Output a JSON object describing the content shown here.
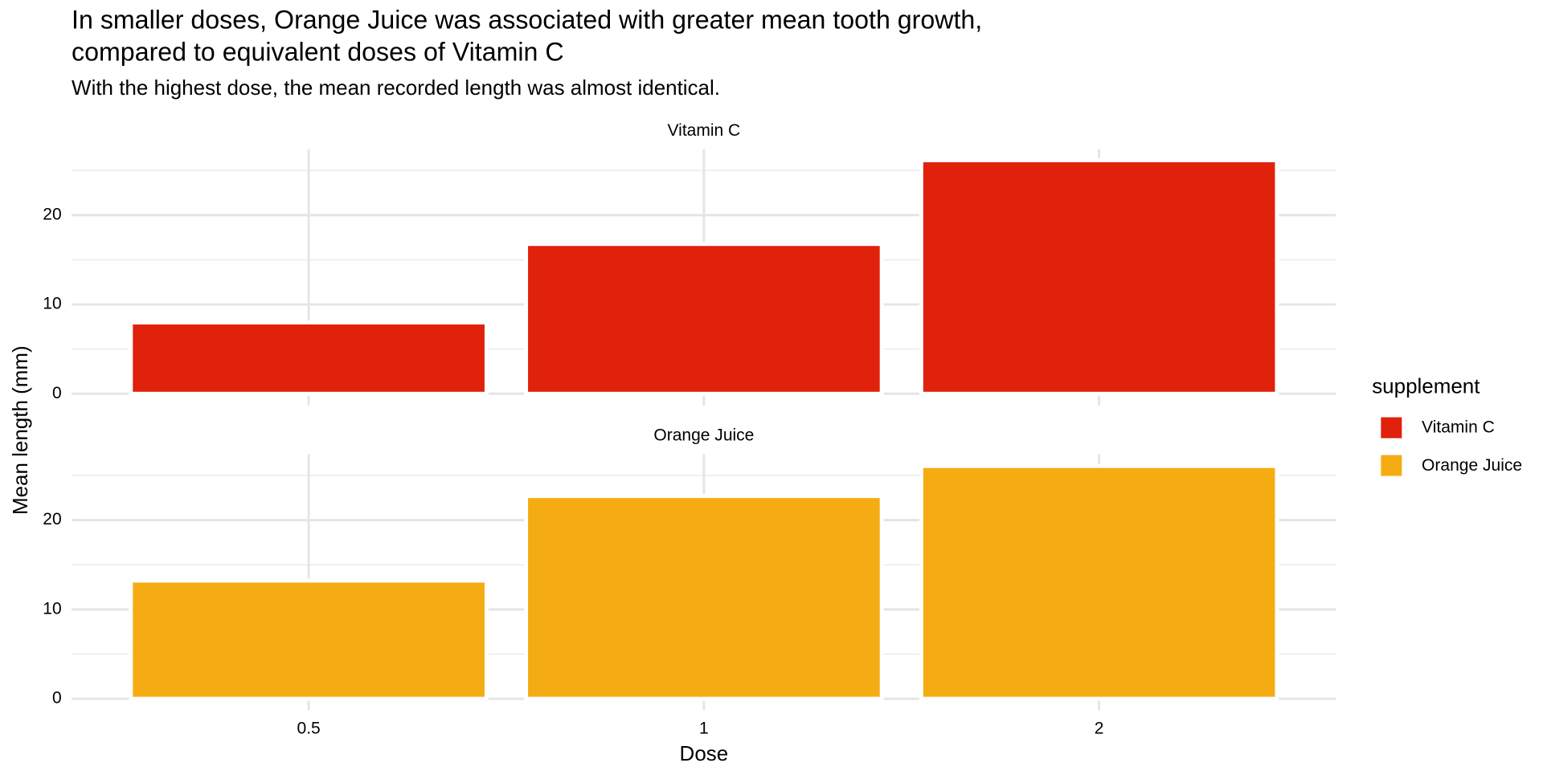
{
  "chart_data": {
    "type": "bar",
    "title": "In smaller doses, Orange Juice was associated with greater mean tooth growth,",
    "title_line2": "compared to equivalent doses of Vitamin C",
    "subtitle": "With the highest dose, the mean recorded length was almost identical.",
    "x_label": "Dose",
    "y_label": "Mean length (mm)",
    "legend_title": "supplement",
    "categories": [
      "0.5",
      "1",
      "2"
    ],
    "series": [
      {
        "name": "Vitamin C",
        "color": "#e0210b",
        "values": [
          7.98,
          16.77,
          26.14
        ]
      },
      {
        "name": "Orange Juice",
        "color": "#f5ac12",
        "values": [
          13.23,
          22.7,
          26.06
        ]
      }
    ],
    "ylim": [
      -1.3,
      27.4
    ],
    "yticks": [
      0,
      10,
      20
    ],
    "yminor": [
      5,
      15,
      25
    ],
    "grid": true
  }
}
